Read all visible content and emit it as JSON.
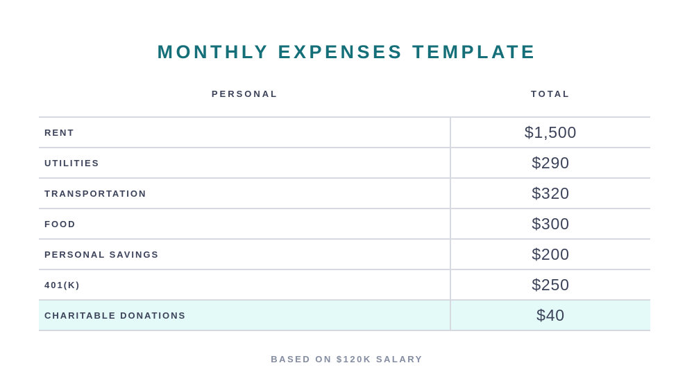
{
  "title": "MONTHLY EXPENSES TEMPLATE",
  "table": {
    "columns": [
      "PERSONAL",
      "TOTAL"
    ],
    "rows": [
      {
        "label": "RENT",
        "value": "$1,500",
        "highlighted": false
      },
      {
        "label": "UTILITIES",
        "value": "$290",
        "highlighted": false
      },
      {
        "label": "TRANSPORTATION",
        "value": "$320",
        "highlighted": false
      },
      {
        "label": "FOOD",
        "value": "$300",
        "highlighted": false
      },
      {
        "label": "PERSONAL SAVINGS",
        "value": "$200",
        "highlighted": false
      },
      {
        "label": "401(K)",
        "value": "$250",
        "highlighted": false
      },
      {
        "label": "CHARITABLE DONATIONS",
        "value": "$40",
        "highlighted": true
      }
    ]
  },
  "footer": {
    "note": "BASED ON $120K SALARY"
  },
  "colors": {
    "accent_teal": "#156F78",
    "text_navy": "#3B4259",
    "muted_gray_blue": "#848CA1",
    "divider_gray": "#D6D9E0",
    "highlight_row_bg": "#E3FAF8"
  }
}
